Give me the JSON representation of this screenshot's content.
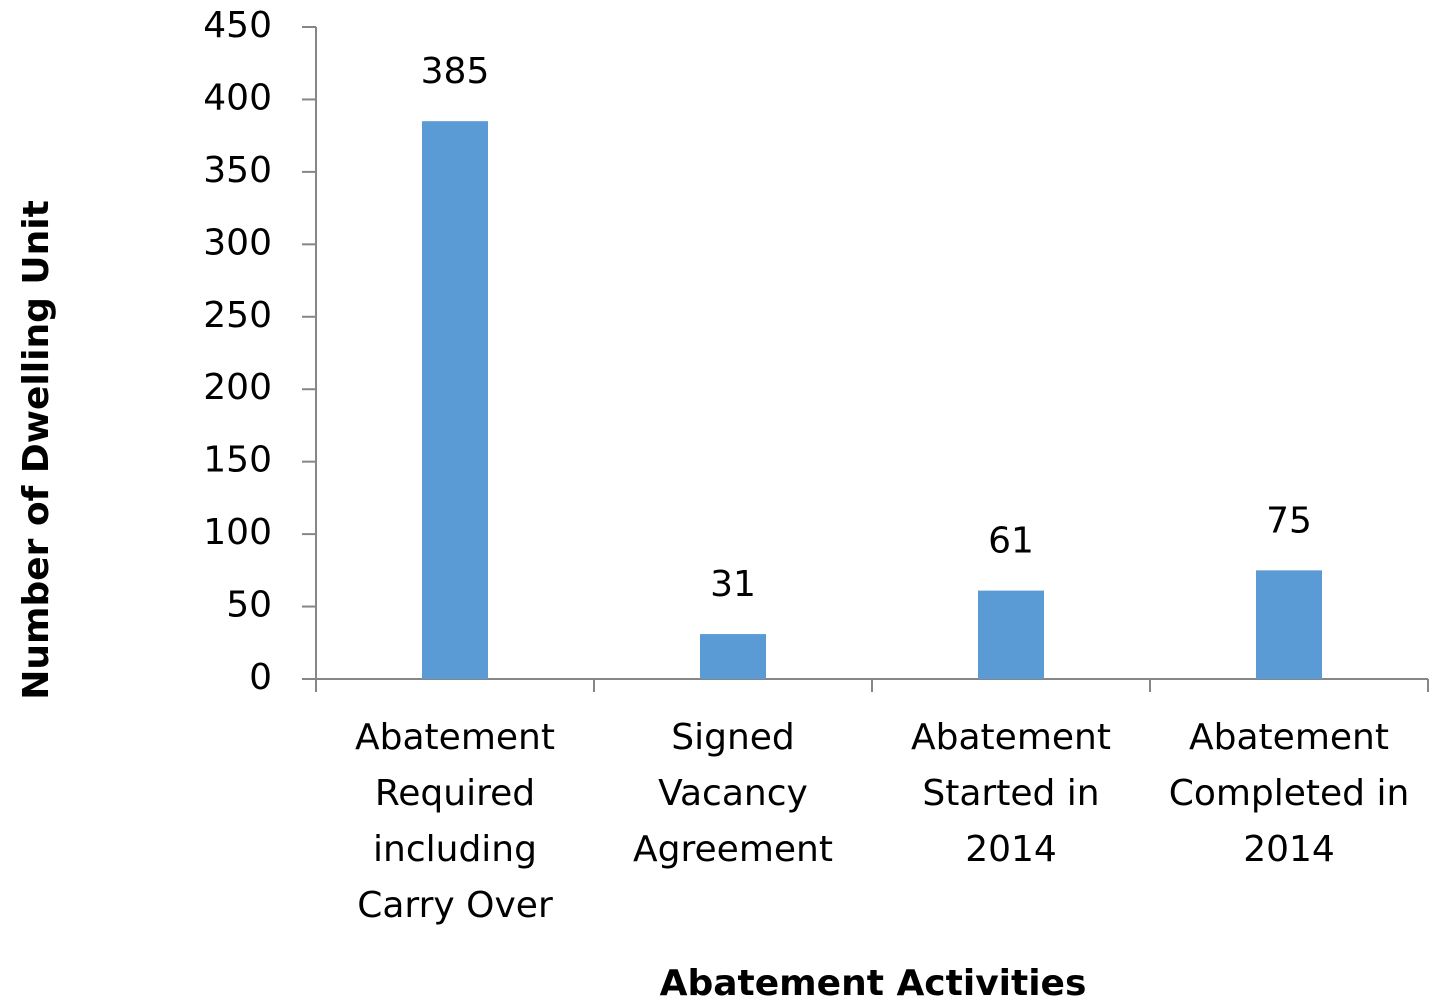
{
  "chart_data": {
    "type": "bar",
    "x_label": "Abatement Activities",
    "y_label": "Number of Dwelling Unit",
    "categories": [
      "Abatement\nRequired\nincluding\nCarry Over",
      "Signed\nVacancy\nAgreement",
      "Abatement\nStarted in\n2014",
      "Abatement\nCompleted in\n2014"
    ],
    "values": [
      385,
      31,
      61,
      75
    ],
    "color": "#5b9bd5",
    "ylim": [
      0,
      450
    ],
    "yticks": [
      0,
      50,
      100,
      150,
      200,
      250,
      300,
      350,
      400,
      450
    ],
    "grid": false,
    "data_labels": true
  }
}
